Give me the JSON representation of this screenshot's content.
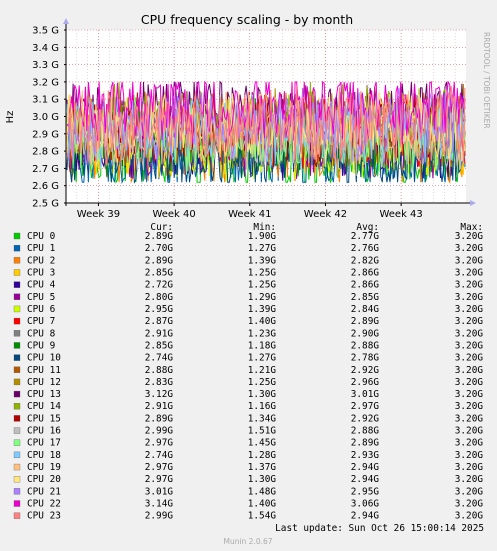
{
  "colors": {
    "background": "#f0f0f0",
    "plot_background": "#ffffff",
    "major_grid": "#e06666",
    "minor_grid": "#ddbbbb",
    "axis": "#000000",
    "arrow": "#aaaaee",
    "watermark": "#aaaaaa"
  },
  "chart_data": {
    "type": "line",
    "title": "CPU frequency scaling - by month",
    "ylabel": "Hz",
    "ylim": [
      2.5,
      3.5
    ],
    "y_ticks": [
      {
        "value": 2.5,
        "label": "2.5 G"
      },
      {
        "value": 2.6,
        "label": "2.6 G"
      },
      {
        "value": 2.7,
        "label": "2.7 G"
      },
      {
        "value": 2.8,
        "label": "2.8 G"
      },
      {
        "value": 2.9,
        "label": "2.9 G"
      },
      {
        "value": 3.0,
        "label": "3.0 G"
      },
      {
        "value": 3.1,
        "label": "3.1 G"
      },
      {
        "value": 3.2,
        "label": "3.2 G"
      },
      {
        "value": 3.3,
        "label": "3.3 G"
      },
      {
        "value": 3.4,
        "label": "3.4 G"
      },
      {
        "value": 3.5,
        "label": "3.5 G"
      }
    ],
    "x_range": [
      "2025-09-19",
      "2025-10-26"
    ],
    "x_ticks": [
      {
        "date": "2025-09-22",
        "label": "Week 39"
      },
      {
        "date": "2025-09-29",
        "label": "Week 40"
      },
      {
        "date": "2025-10-06",
        "label": "Week 41"
      },
      {
        "date": "2025-10-13",
        "label": "Week 42"
      },
      {
        "date": "2025-10-20",
        "label": "Week 43"
      }
    ],
    "grid": true,
    "legend_placement": "bottom",
    "column_headers": [
      "Cur:",
      "Min:",
      "Avg:",
      "Max:"
    ],
    "series": [
      {
        "name": "CPU 0",
        "color": "#00cc00",
        "cur": "2.89G",
        "min": "1.90G",
        "avg": "2.77G",
        "max": "3.20G",
        "avg_value": 2.77
      },
      {
        "name": "CPU 1",
        "color": "#0066b3",
        "cur": "2.70G",
        "min": "1.27G",
        "avg": "2.76G",
        "max": "3.20G",
        "avg_value": 2.76
      },
      {
        "name": "CPU 2",
        "color": "#ff8000",
        "cur": "2.89G",
        "min": "1.39G",
        "avg": "2.82G",
        "max": "3.20G",
        "avg_value": 2.82
      },
      {
        "name": "CPU 3",
        "color": "#ffcc00",
        "cur": "2.85G",
        "min": "1.25G",
        "avg": "2.86G",
        "max": "3.20G",
        "avg_value": 2.86
      },
      {
        "name": "CPU 4",
        "color": "#330099",
        "cur": "2.72G",
        "min": "1.25G",
        "avg": "2.86G",
        "max": "3.20G",
        "avg_value": 2.86
      },
      {
        "name": "CPU 5",
        "color": "#990099",
        "cur": "2.80G",
        "min": "1.29G",
        "avg": "2.85G",
        "max": "3.20G",
        "avg_value": 2.85
      },
      {
        "name": "CPU 6",
        "color": "#ccff00",
        "cur": "2.95G",
        "min": "1.39G",
        "avg": "2.84G",
        "max": "3.20G",
        "avg_value": 2.84
      },
      {
        "name": "CPU 7",
        "color": "#ff0000",
        "cur": "2.87G",
        "min": "1.40G",
        "avg": "2.89G",
        "max": "3.20G",
        "avg_value": 2.89
      },
      {
        "name": "CPU 8",
        "color": "#808080",
        "cur": "2.91G",
        "min": "1.23G",
        "avg": "2.90G",
        "max": "3.20G",
        "avg_value": 2.9
      },
      {
        "name": "CPU 9",
        "color": "#008f00",
        "cur": "2.85G",
        "min": "1.18G",
        "avg": "2.88G",
        "max": "3.20G",
        "avg_value": 2.88
      },
      {
        "name": "CPU 10",
        "color": "#00487d",
        "cur": "2.74G",
        "min": "1.27G",
        "avg": "2.78G",
        "max": "3.20G",
        "avg_value": 2.78
      },
      {
        "name": "CPU 11",
        "color": "#b35a00",
        "cur": "2.88G",
        "min": "1.21G",
        "avg": "2.92G",
        "max": "3.20G",
        "avg_value": 2.92
      },
      {
        "name": "CPU 12",
        "color": "#b38f00",
        "cur": "2.83G",
        "min": "1.25G",
        "avg": "2.96G",
        "max": "3.20G",
        "avg_value": 2.96
      },
      {
        "name": "CPU 13",
        "color": "#6b006b",
        "cur": "3.12G",
        "min": "1.30G",
        "avg": "3.01G",
        "max": "3.20G",
        "avg_value": 3.01
      },
      {
        "name": "CPU 14",
        "color": "#8fb300",
        "cur": "2.91G",
        "min": "1.16G",
        "avg": "2.97G",
        "max": "3.20G",
        "avg_value": 2.97
      },
      {
        "name": "CPU 15",
        "color": "#b30000",
        "cur": "2.89G",
        "min": "1.34G",
        "avg": "2.92G",
        "max": "3.20G",
        "avg_value": 2.92
      },
      {
        "name": "CPU 16",
        "color": "#bebebe",
        "cur": "2.99G",
        "min": "1.51G",
        "avg": "2.88G",
        "max": "3.20G",
        "avg_value": 2.88
      },
      {
        "name": "CPU 17",
        "color": "#80ff80",
        "cur": "2.97G",
        "min": "1.45G",
        "avg": "2.89G",
        "max": "3.20G",
        "avg_value": 2.89
      },
      {
        "name": "CPU 18",
        "color": "#80c9ff",
        "cur": "2.74G",
        "min": "1.28G",
        "avg": "2.93G",
        "max": "3.20G",
        "avg_value": 2.93
      },
      {
        "name": "CPU 19",
        "color": "#ffc080",
        "cur": "2.97G",
        "min": "1.37G",
        "avg": "2.94G",
        "max": "3.20G",
        "avg_value": 2.94
      },
      {
        "name": "CPU 20",
        "color": "#ffe680",
        "cur": "2.97G",
        "min": "1.30G",
        "avg": "2.94G",
        "max": "3.20G",
        "avg_value": 2.94
      },
      {
        "name": "CPU 21",
        "color": "#aa80ff",
        "cur": "3.01G",
        "min": "1.48G",
        "avg": "2.95G",
        "max": "3.20G",
        "avg_value": 2.95
      },
      {
        "name": "CPU 22",
        "color": "#ee00cc",
        "cur": "3.14G",
        "min": "1.40G",
        "avg": "3.06G",
        "max": "3.20G",
        "avg_value": 3.06
      },
      {
        "name": "CPU 23",
        "color": "#ff8080",
        "cur": "2.99G",
        "min": "1.54G",
        "avg": "2.94G",
        "max": "3.20G",
        "avg_value": 2.94
      }
    ]
  },
  "last_update": "Last update: Sun Oct 26 15:00:14 2025",
  "watermark": "RRDTOOL / TOBI OETIKER",
  "footer": "Munin 2.0.67"
}
